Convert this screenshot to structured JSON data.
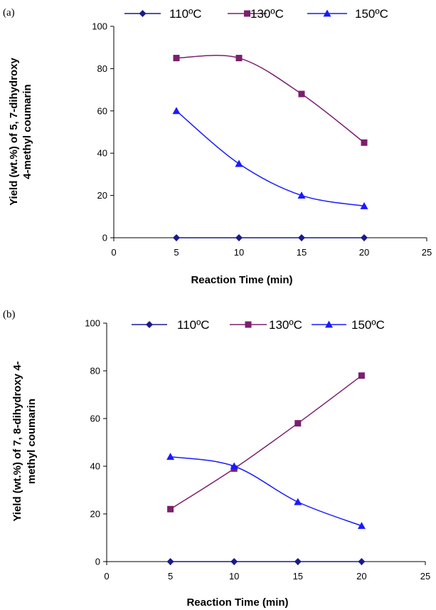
{
  "chart_data": [
    {
      "type": "line",
      "panel_label": "(a)",
      "x": [
        5,
        10,
        15,
        20
      ],
      "xlim": [
        0,
        25
      ],
      "xticks": [
        0,
        5,
        10,
        15,
        20,
        25
      ],
      "ylim": [
        0,
        100
      ],
      "yticks": [
        0,
        20,
        40,
        60,
        80,
        100
      ],
      "xlabel": "Reaction Time (min)",
      "ylabel_lines": [
        "Yield (wt.%) of 5, 7-dihydroxy",
        "4-methyl coumarin"
      ],
      "grid": false,
      "legend_position": "top",
      "series": [
        {
          "name": "110ºC",
          "marker": "diamond",
          "color": "#1a1a8c",
          "values": [
            0,
            0,
            0,
            0
          ]
        },
        {
          "name": "130ºC",
          "marker": "square",
          "color": "#7b1f6e",
          "values": [
            85,
            85,
            68,
            45
          ]
        },
        {
          "name": "150ºC",
          "marker": "triangle",
          "color": "#1a1aff",
          "values": [
            60,
            35,
            20,
            15
          ]
        }
      ]
    },
    {
      "type": "line",
      "panel_label": "(b)",
      "x": [
        5,
        10,
        15,
        20
      ],
      "xlim": [
        0,
        25
      ],
      "xticks": [
        0,
        5,
        10,
        15,
        20,
        25
      ],
      "ylim": [
        0,
        100
      ],
      "yticks": [
        0,
        20,
        40,
        60,
        80,
        100
      ],
      "xlabel": "Reaction Time (min)",
      "ylabel_lines": [
        "Yield (wt.%) of 7, 8-dihydroxy 4-",
        "methyl coumarin"
      ],
      "grid": false,
      "legend_position": "top",
      "series": [
        {
          "name": "110ºC",
          "marker": "diamond",
          "color": "#1a1a8c",
          "values": [
            0,
            0,
            0,
            0
          ]
        },
        {
          "name": "130ºC",
          "marker": "square",
          "color": "#7b1f6e",
          "values": [
            22,
            39,
            58,
            78
          ]
        },
        {
          "name": "150ºC",
          "marker": "triangle",
          "color": "#1a1aff",
          "values": [
            44,
            40,
            25,
            15
          ]
        }
      ]
    }
  ]
}
